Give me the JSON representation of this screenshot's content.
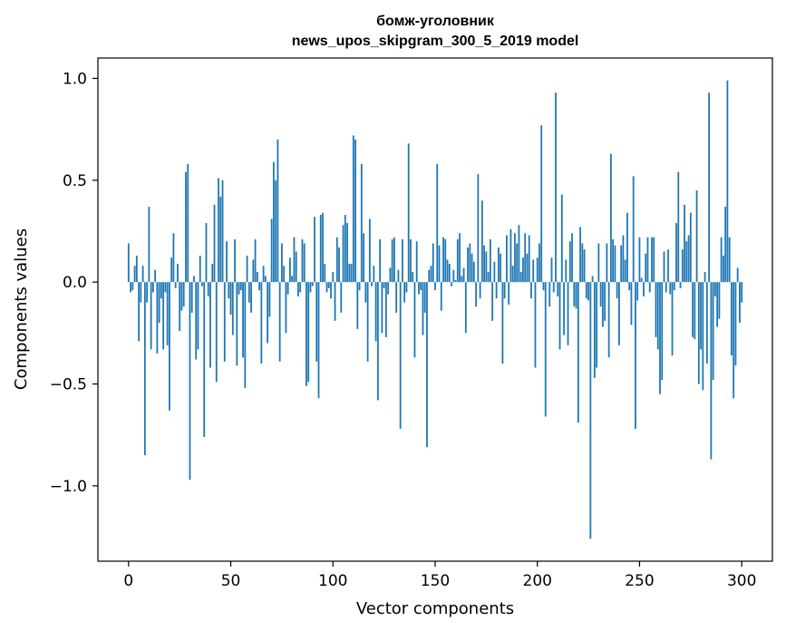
{
  "chart_data": {
    "type": "bar",
    "title": "бомж-уголовник",
    "subtitle": "news_upos_skipgram_300_5_2019 model",
    "xlabel": "Vector components",
    "ylabel": "Components values",
    "xlim": [
      -15,
      315
    ],
    "ylim": [
      -1.37,
      1.1
    ],
    "xticks": [
      0,
      50,
      100,
      150,
      200,
      250,
      300
    ],
    "xtick_labels": [
      "0",
      "50",
      "100",
      "150",
      "200",
      "250",
      "300"
    ],
    "yticks": [
      1.0,
      0.5,
      0.0,
      -0.5,
      -1.0
    ],
    "ytick_labels": [
      "1.0",
      "0.5",
      "0.0",
      "−0.5",
      "−1.0"
    ],
    "color": "#1f77b4",
    "grid": false,
    "values": [
      0.19,
      -0.05,
      -0.04,
      0.08,
      0.13,
      -0.29,
      -0.1,
      0.08,
      -0.85,
      -0.1,
      0.37,
      -0.33,
      -0.05,
      0.06,
      -0.35,
      -0.2,
      -0.08,
      -0.33,
      -0.05,
      -0.31,
      -0.63,
      0.12,
      0.24,
      -0.03,
      0.09,
      -0.24,
      -0.14,
      -0.12,
      0.54,
      0.58,
      -0.97,
      -0.15,
      0.03,
      -0.38,
      -0.33,
      0.13,
      -0.02,
      -0.76,
      0.29,
      -0.07,
      -0.42,
      0.09,
      0.38,
      -0.49,
      0.51,
      0.42,
      0.5,
      -0.39,
      0.2,
      -0.08,
      -0.16,
      -0.26,
      0.21,
      -0.41,
      -0.06,
      -0.04,
      -0.37,
      -0.52,
      0.13,
      -0.1,
      -0.15,
      0.11,
      0.21,
      0.05,
      -0.04,
      -0.4,
      0.08,
      0.03,
      -0.3,
      -0.17,
      0.31,
      0.59,
      0.5,
      0.7,
      -0.39,
      0.19,
      0.08,
      -0.25,
      -0.06,
      0.12,
      0.03,
      0.22,
      0.15,
      -0.07,
      -0.05,
      0.21,
      0.19,
      -0.51,
      -0.49,
      -0.05,
      -0.02,
      0.32,
      -0.39,
      -0.57,
      0.33,
      0.34,
      0.09,
      -0.05,
      -0.03,
      -0.08,
      0.05,
      -0.19,
      0.22,
      0.17,
      -0.15,
      0.28,
      0.33,
      0.29,
      0.09,
      0.09,
      0.72,
      0.7,
      -0.23,
      -0.04,
      0.58,
      0.24,
      -0.1,
      -0.39,
      0.31,
      -0.02,
      0.08,
      -0.29,
      -0.58,
      0.21,
      -0.25,
      -0.03,
      -0.27,
      -0.06,
      0.07,
      0.21,
      0.22,
      -0.15,
      0.06,
      -0.72,
      0.21,
      -0.1,
      -0.05,
      0.68,
      0.21,
      0.05,
      -0.37,
      0.2,
      -0.06,
      -0.04,
      -0.26,
      -0.15,
      -0.81,
      0.06,
      0.08,
      0.19,
      -0.04,
      0.58,
      0.18,
      -0.14,
      0.22,
      0.21,
      0.11,
      0.09,
      -0.02,
      0.06,
      0.01,
      0.21,
      0.24,
      0.03,
      0.07,
      -0.25,
      0.17,
      0.19,
      0.14,
      0.1,
      -0.12,
      0.53,
      -0.08,
      0.4,
      0.18,
      0.15,
      0.05,
      0.21,
      -0.19,
      0.1,
      -0.08,
      0.17,
      0.14,
      -0.4,
      -0.08,
      0.23,
      -0.11,
      0.26,
      0.08,
      0.24,
      0.19,
      0.28,
      0.05,
      0.12,
      0.24,
      0.14,
      0.23,
      -0.08,
      0.11,
      -0.42,
      0.12,
      0.19,
      0.77,
      -0.04,
      -0.66,
      0.0,
      -0.12,
      0.12,
      -0.05,
      0.93,
      -0.07,
      -0.33,
      0.43,
      -0.26,
      0.11,
      -0.31,
      0.2,
      0.24,
      -0.12,
      -0.13,
      -0.69,
      0.27,
      0.19,
      0.16,
      -0.08,
      -0.09,
      -1.26,
      0.03,
      -0.47,
      -0.42,
      0.19,
      -0.12,
      -0.22,
      -0.19,
      0.19,
      -0.37,
      0.63,
      0.21,
      0.18,
      -0.08,
      -0.31,
      0.18,
      0.23,
      0.11,
      0.34,
      -0.04,
      -0.21,
      0.52,
      -0.72,
      -0.09,
      0.22,
      0.02,
      -0.07,
      0.14,
      0.22,
      -0.05,
      0.22,
      0.22,
      -0.27,
      -0.33,
      -0.55,
      -0.48,
      0.15,
      -0.05,
      0.16,
      -0.06,
      -0.36,
      -0.04,
      0.29,
      0.54,
      -0.03,
      0.16,
      0.38,
      0.2,
      0.23,
      0.34,
      -0.27,
      -0.28,
      0.45,
      -0.5,
      -0.33,
      -0.53,
      0.05,
      -0.4,
      0.93,
      -0.87,
      -0.48,
      -0.07,
      -0.22,
      -0.18,
      0.22,
      0.13,
      0.37,
      0.99,
      0.22,
      -0.36,
      -0.57,
      -0.41,
      0.07,
      -0.2,
      -0.1
    ]
  }
}
